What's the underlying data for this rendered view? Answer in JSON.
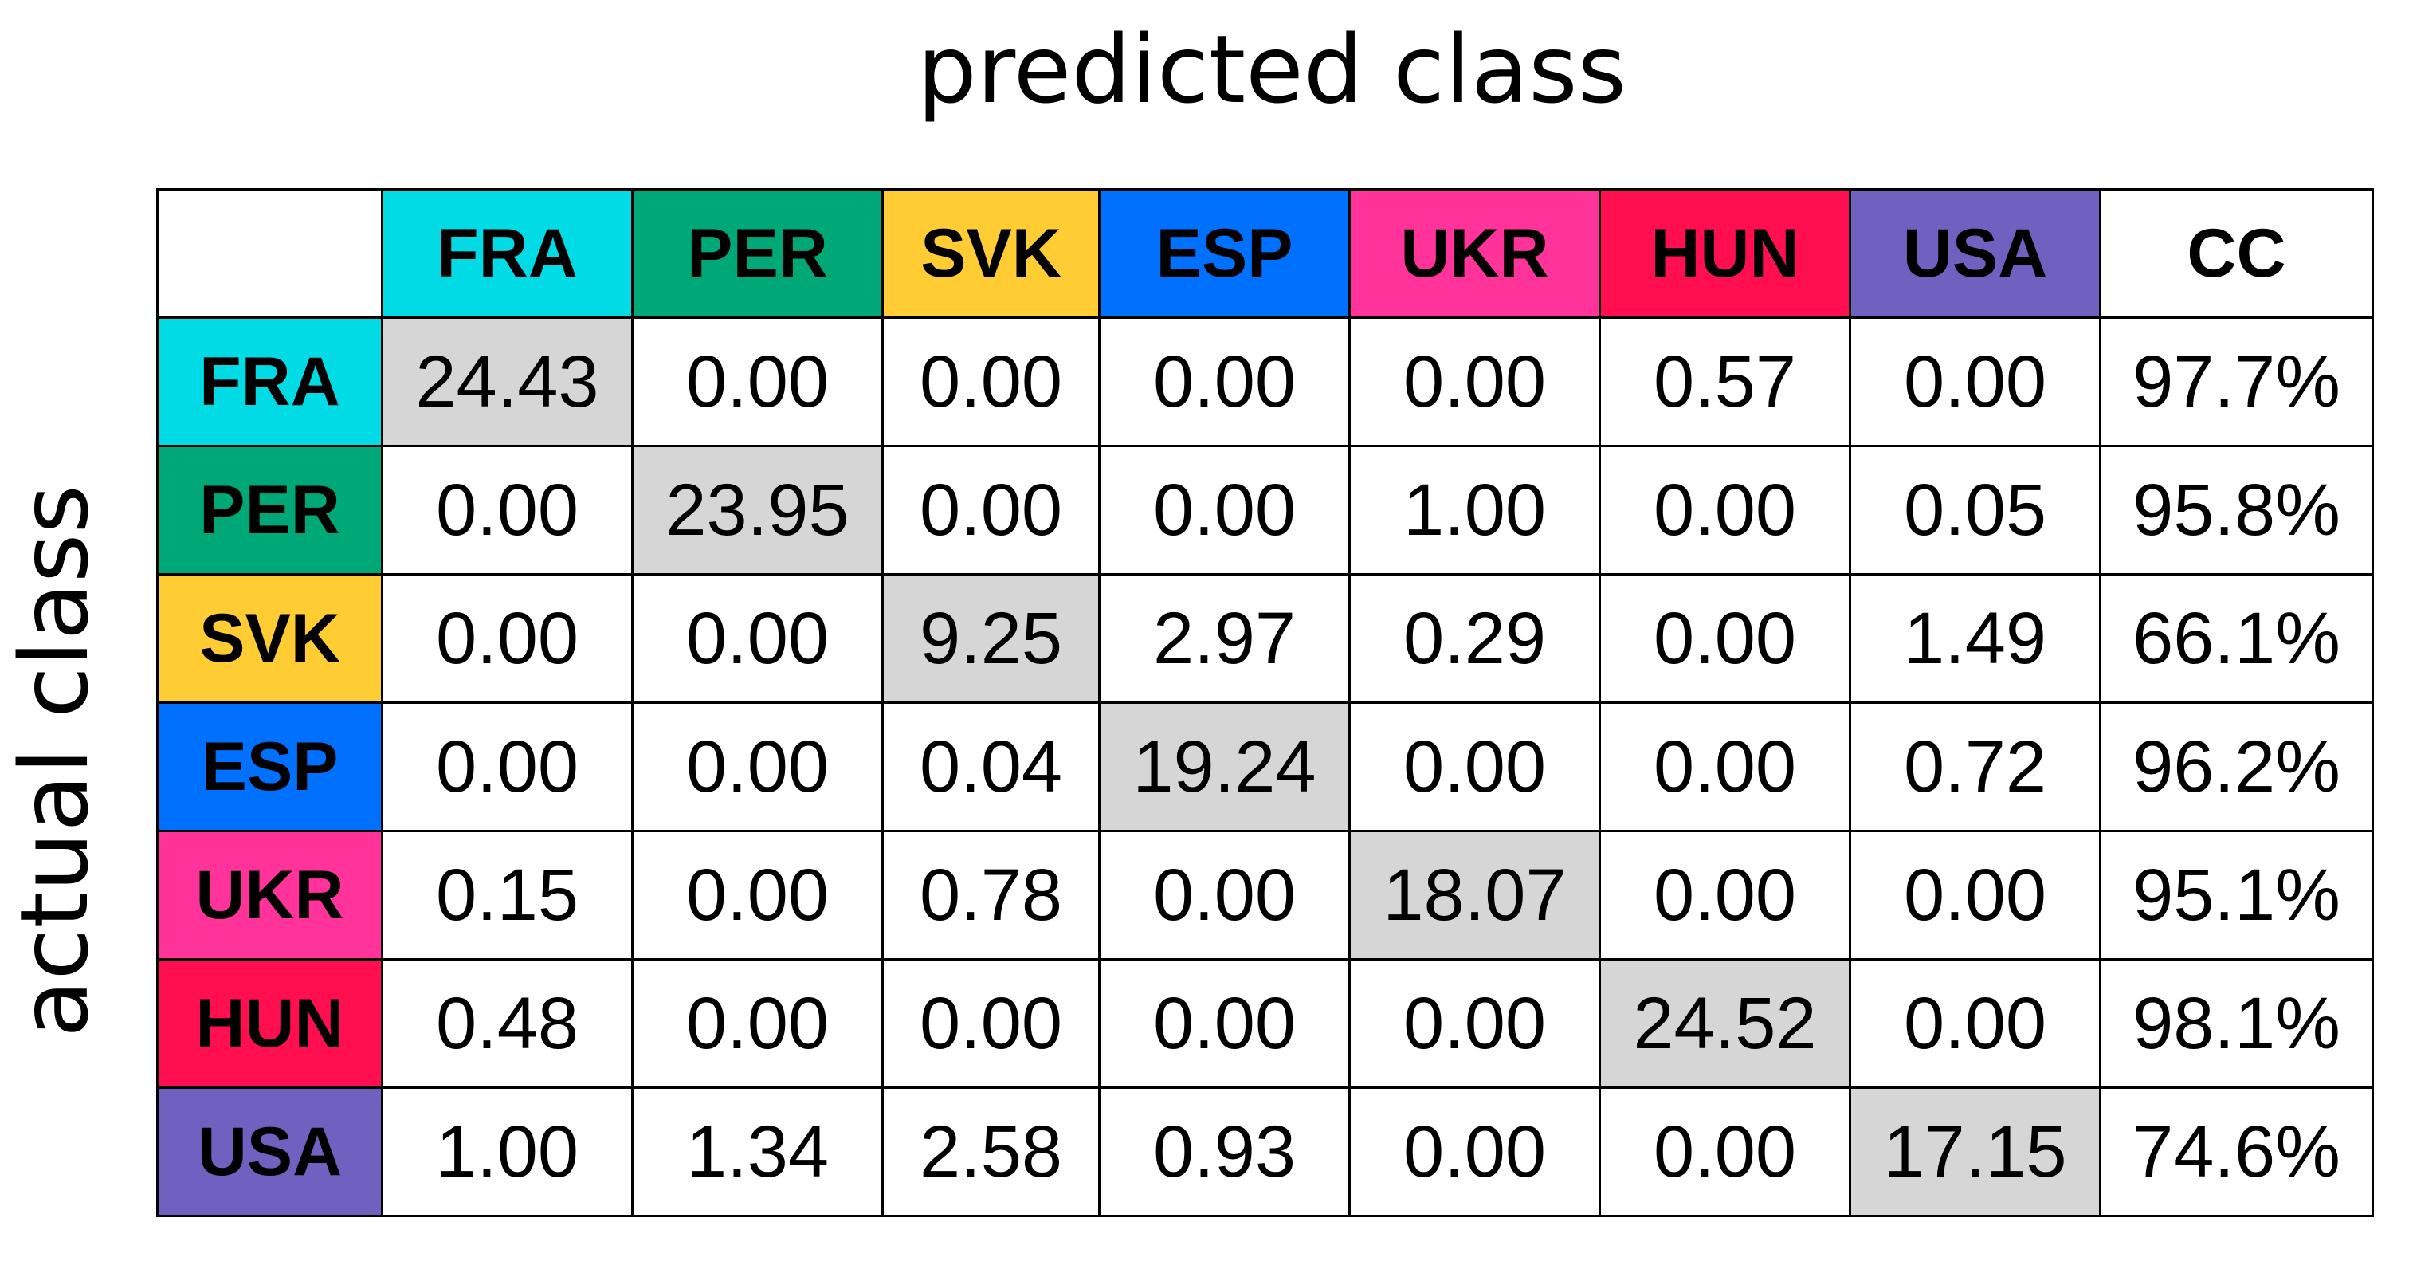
{
  "chart_data": {
    "type": "table",
    "title": "predicted class",
    "ylabel": "actual class",
    "column_labels": [
      "FRA",
      "PER",
      "SVK",
      "ESP",
      "UKR",
      "HUN",
      "USA",
      "CC"
    ],
    "row_labels": [
      "FRA",
      "PER",
      "SVK",
      "ESP",
      "UKR",
      "HUN",
      "USA"
    ],
    "class_colors": [
      "#00dbe6",
      "#00a877",
      "#ffcc33",
      "#0070ff",
      "#ff3399",
      "#ff0f4f",
      "#7060c0"
    ],
    "matrix": [
      [
        "24.43",
        "0.00",
        "0.00",
        "0.00",
        "0.00",
        "0.57",
        "0.00"
      ],
      [
        "0.00",
        "23.95",
        "0.00",
        "0.00",
        "1.00",
        "0.00",
        "0.05"
      ],
      [
        "0.00",
        "0.00",
        "9.25",
        "2.97",
        "0.29",
        "0.00",
        "1.49"
      ],
      [
        "0.00",
        "0.00",
        "0.04",
        "19.24",
        "0.00",
        "0.00",
        "0.72"
      ],
      [
        "0.15",
        "0.00",
        "0.78",
        "0.00",
        "18.07",
        "0.00",
        "0.00"
      ],
      [
        "0.48",
        "0.00",
        "0.00",
        "0.00",
        "0.00",
        "24.52",
        "0.00"
      ],
      [
        "1.00",
        "1.34",
        "2.58",
        "0.93",
        "0.00",
        "0.00",
        "17.15"
      ]
    ],
    "cc": [
      "97.7%",
      "95.8%",
      "66.1%",
      "96.2%",
      "95.1%",
      "98.1%",
      "74.6%"
    ]
  }
}
